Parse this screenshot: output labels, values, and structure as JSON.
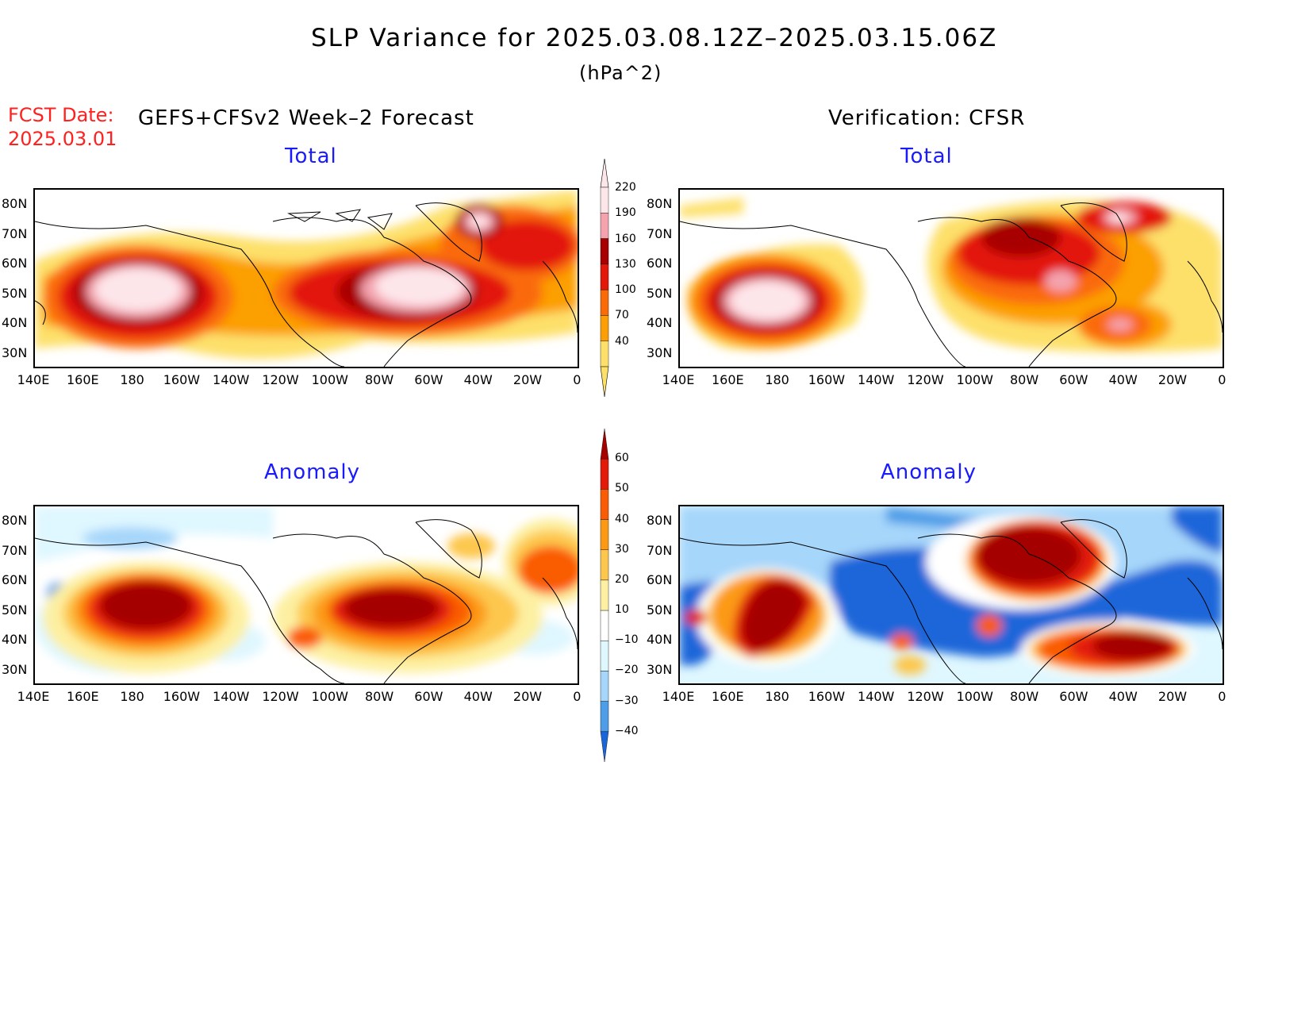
{
  "header": {
    "title": "SLP Variance for 2025.03.08.12Z–2025.03.15.06Z",
    "units": "(hPa^2)",
    "fcst_label": "FCST Date:",
    "fcst_date": "2025.03.01",
    "left_heading": "GEFS+CFSv2 Week–2 Forecast",
    "right_heading": "Verification: CFSR"
  },
  "panels": {
    "forecast_total_title": "Total",
    "verify_total_title": "Total",
    "forecast_anom_title": "Anomaly",
    "verify_anom_title": "Anomaly"
  },
  "axes": {
    "lat_labels": [
      "80N",
      "70N",
      "60N",
      "50N",
      "40N",
      "30N"
    ],
    "lon_labels": [
      "140E",
      "160E",
      "180",
      "160W",
      "140W",
      "120W",
      "100W",
      "80W",
      "60W",
      "40W",
      "20W",
      "0"
    ]
  },
  "colorbars": {
    "total": {
      "levels": [
        "220",
        "190",
        "160",
        "130",
        "100",
        "70",
        "40"
      ],
      "colors": [
        "#fde6ea",
        "#f4a3ae",
        "#a80000",
        "#e3170a",
        "#fa6b07",
        "#fc9f06",
        "#fde06a"
      ]
    },
    "anomaly": {
      "levels": [
        "60",
        "50",
        "40",
        "30",
        "20",
        "10",
        "−10",
        "−20",
        "−30",
        "−40"
      ],
      "colors": [
        "#a50000",
        "#e31a0a",
        "#fa5c06",
        "#fc9a16",
        "#fdc74e",
        "#fdf0a2",
        "#ffffff",
        "#dff7ff",
        "#a6d6fa",
        "#4d9de8",
        "#1a66d9"
      ]
    }
  }
}
